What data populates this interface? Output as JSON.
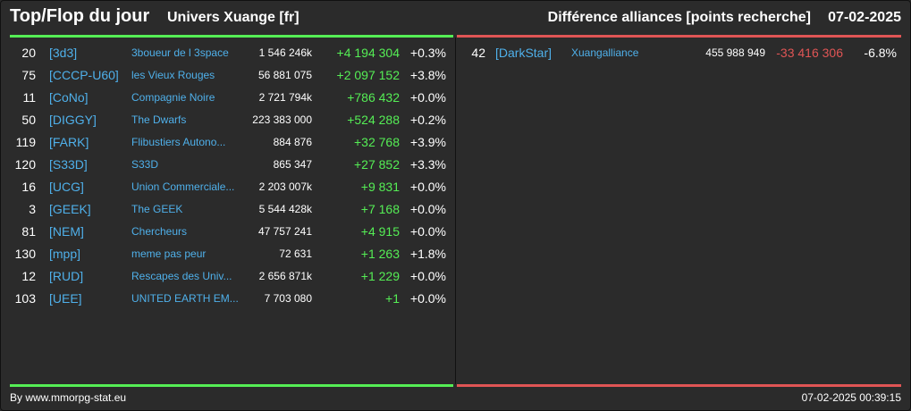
{
  "header": {
    "title": "Top/Flop du jour",
    "universe": "Univers Xuange [fr]",
    "diff_title": "Différence alliances [points recherche]",
    "date": "07-02-2025"
  },
  "top": [
    {
      "rank": "20",
      "tag": "[3d3]",
      "name": "3boueur de l 3space",
      "points": "1 546 246k",
      "diff": "+4 194 304",
      "pct": "+0.3%"
    },
    {
      "rank": "75",
      "tag": "[CCCP-U60]",
      "name": "les Vieux Rouges",
      "points": "56 881 075",
      "diff": "+2 097 152",
      "pct": "+3.8%"
    },
    {
      "rank": "11",
      "tag": "[CoNo]",
      "name": "Compagnie Noire",
      "points": "2 721 794k",
      "diff": "+786 432",
      "pct": "+0.0%"
    },
    {
      "rank": "50",
      "tag": "[DIGGY]",
      "name": "The Dwarfs",
      "points": "223 383 000",
      "diff": "+524 288",
      "pct": "+0.2%"
    },
    {
      "rank": "119",
      "tag": "[FARK]",
      "name": "Flibustiers Autono...",
      "points": "884 876",
      "diff": "+32 768",
      "pct": "+3.9%"
    },
    {
      "rank": "120",
      "tag": "[S33D]",
      "name": "S33D",
      "points": "865 347",
      "diff": "+27 852",
      "pct": "+3.3%"
    },
    {
      "rank": "16",
      "tag": "[UCG]",
      "name": "Union Commerciale...",
      "points": "2 203 007k",
      "diff": "+9 831",
      "pct": "+0.0%"
    },
    {
      "rank": "3",
      "tag": "[GEEK]",
      "name": "The GEEK",
      "points": "5 544 428k",
      "diff": "+7 168",
      "pct": "+0.0%"
    },
    {
      "rank": "81",
      "tag": "[NEM]",
      "name": "Chercheurs",
      "points": "47 757 241",
      "diff": "+4 915",
      "pct": "+0.0%"
    },
    {
      "rank": "130",
      "tag": "[mpp]",
      "name": "meme pas peur",
      "points": "72 631",
      "diff": "+1 263",
      "pct": "+1.8%"
    },
    {
      "rank": "12",
      "tag": "[RUD]",
      "name": "Rescapes des Univ...",
      "points": "2 656 871k",
      "diff": "+1 229",
      "pct": "+0.0%"
    },
    {
      "rank": "103",
      "tag": "[UEE]",
      "name": "UNITED EARTH EM...",
      "points": "7 703 080",
      "diff": "+1",
      "pct": "+0.0%"
    }
  ],
  "flop": [
    {
      "rank": "42",
      "tag": "[DarkStar]",
      "name": "Xuangalliance",
      "points": "455 988 949",
      "diff": "-33 416 306",
      "pct": "-6.8%"
    }
  ],
  "footer": {
    "credit": "By www.mmorpg-stat.eu",
    "timestamp": "07-02-2025 00:39:15"
  },
  "colors": {
    "gain": "#55ee55",
    "loss": "#e05555",
    "link": "#4fb0ea",
    "background": "#2b2b2b"
  }
}
